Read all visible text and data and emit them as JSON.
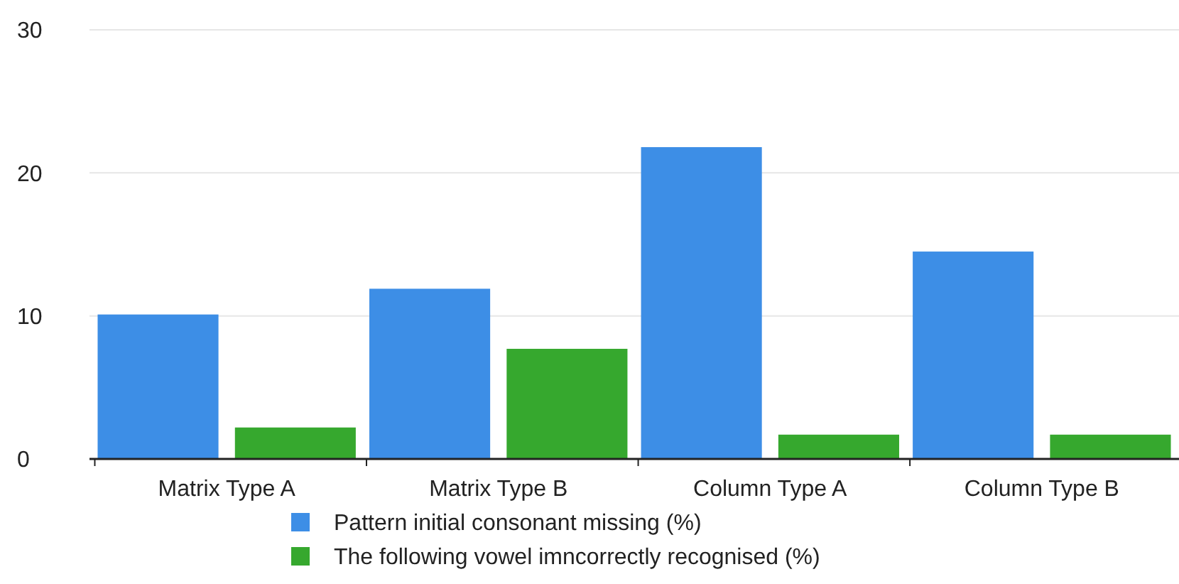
{
  "chart_data": {
    "type": "bar",
    "categories": [
      "Matrix Type A",
      "Matrix Type B",
      "Column Type A",
      "Column Type B"
    ],
    "series": [
      {
        "name": "Pattern initial consonant missing (%)",
        "color": "#3d8ee6",
        "values": [
          10.1,
          11.9,
          21.8,
          14.5
        ]
      },
      {
        "name": "The following vowel imncorrectly recognised (%)",
        "color": "#36a82e",
        "values": [
          2.2,
          7.7,
          1.7,
          1.7
        ]
      }
    ],
    "ylim": [
      0,
      30
    ],
    "yticks": [
      0,
      10,
      20,
      30
    ],
    "grid": "y",
    "legend": "bottom"
  }
}
